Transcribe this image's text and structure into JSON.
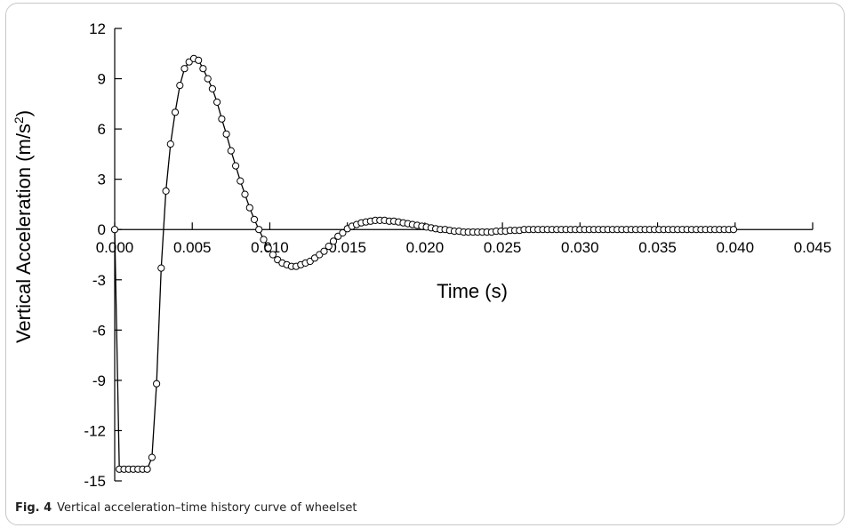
{
  "caption": {
    "label": "Fig. 4",
    "text": "Vertical acceleration–time history curve of wheelset"
  },
  "chart_data": {
    "type": "line",
    "title": "",
    "xlabel": "Time (s)",
    "ylabel": "Vertical Acceleration (m/s²)",
    "ylabel_main": "Vertical Acceleration (m/s",
    "ylabel_sup": "2",
    "ylabel_close": ")",
    "xlim": [
      0,
      0.045
    ],
    "ylim": [
      -15,
      12
    ],
    "xticks": [
      0,
      0.005,
      0.01,
      0.015,
      0.02,
      0.025,
      0.03,
      0.035,
      0.04,
      0.045
    ],
    "xtick_labels": [
      "0.000",
      "0.005",
      "0.010",
      "0.015",
      "0.020",
      "0.025",
      "0.030",
      "0.035",
      "0.040",
      "0.045"
    ],
    "yticks": [
      12,
      9,
      6,
      3,
      0,
      -3,
      -6,
      -9,
      -12,
      -15
    ],
    "ytick_labels": [
      "12",
      "9",
      "6",
      "3",
      "0",
      "-3",
      "-6",
      "-9",
      "-12",
      "-15"
    ],
    "grid": false,
    "legend": "none",
    "marker": "open-circle",
    "line_color": "#000000",
    "series": [
      {
        "x": [
          0.0,
          0.0003,
          0.0006,
          0.0009,
          0.0012,
          0.0015,
          0.0018,
          0.0021,
          0.0024,
          0.0027,
          0.003,
          0.0033,
          0.0036,
          0.0039,
          0.0042,
          0.0045,
          0.0048,
          0.0051,
          0.0054,
          0.0057,
          0.006,
          0.0063,
          0.0066,
          0.0069,
          0.0072,
          0.0075,
          0.0078,
          0.0081,
          0.0084,
          0.0087,
          0.009,
          0.0093,
          0.0096,
          0.0099,
          0.0102,
          0.0105,
          0.0108,
          0.0111,
          0.0114,
          0.0117,
          0.012,
          0.0123,
          0.0126,
          0.0129,
          0.0132,
          0.0135,
          0.0138,
          0.0141,
          0.0144,
          0.0147,
          0.015,
          0.0153,
          0.0156,
          0.0159,
          0.0162,
          0.0165,
          0.0168,
          0.0171,
          0.0174,
          0.0177,
          0.018,
          0.0183,
          0.0186,
          0.0189,
          0.0192,
          0.0195,
          0.0198,
          0.0201,
          0.0204,
          0.0207,
          0.021,
          0.0213,
          0.0216,
          0.0219,
          0.0222,
          0.0225,
          0.0228,
          0.0231,
          0.0234,
          0.0237,
          0.024,
          0.0243,
          0.0246,
          0.0249,
          0.0252,
          0.0255,
          0.0258,
          0.0261,
          0.0264,
          0.0267,
          0.027,
          0.0273,
          0.0276,
          0.0279,
          0.0282,
          0.0285,
          0.0288,
          0.0291,
          0.0294,
          0.0297,
          0.03,
          0.0303,
          0.0306,
          0.0309,
          0.0312,
          0.0315,
          0.0318,
          0.0321,
          0.0324,
          0.0327,
          0.033,
          0.0333,
          0.0336,
          0.0339,
          0.0342,
          0.0345,
          0.0348,
          0.0351,
          0.0354,
          0.0357,
          0.036,
          0.0363,
          0.0366,
          0.0369,
          0.0372,
          0.0375,
          0.0378,
          0.0381,
          0.0384,
          0.0387,
          0.039,
          0.0393,
          0.0396,
          0.0399
        ],
        "y": [
          0.0,
          -14.3,
          -14.3,
          -14.3,
          -14.3,
          -14.3,
          -14.3,
          -14.3,
          -13.6,
          -9.2,
          -2.3,
          2.3,
          5.1,
          7.0,
          8.6,
          9.6,
          10.0,
          10.2,
          10.1,
          9.6,
          9.0,
          8.4,
          7.6,
          6.6,
          5.7,
          4.7,
          3.8,
          2.9,
          2.1,
          1.3,
          0.6,
          0.0,
          -0.6,
          -1.1,
          -1.5,
          -1.8,
          -2.0,
          -2.1,
          -2.2,
          -2.2,
          -2.1,
          -2.0,
          -1.9,
          -1.7,
          -1.5,
          -1.3,
          -1.0,
          -0.7,
          -0.4,
          -0.2,
          0.05,
          0.2,
          0.3,
          0.4,
          0.45,
          0.5,
          0.55,
          0.55,
          0.55,
          0.5,
          0.5,
          0.45,
          0.4,
          0.35,
          0.3,
          0.25,
          0.2,
          0.15,
          0.1,
          0.05,
          0.0,
          0.0,
          -0.05,
          -0.1,
          -0.1,
          -0.15,
          -0.15,
          -0.15,
          -0.15,
          -0.15,
          -0.15,
          -0.15,
          -0.1,
          -0.1,
          -0.1,
          -0.05,
          -0.05,
          -0.05,
          0.0,
          0.0,
          0.0,
          0.0,
          0.0,
          0.0,
          0.0,
          0.0,
          0.0,
          0.0,
          0.0,
          0.0,
          0.0,
          0.0,
          0.0,
          0.0,
          0.0,
          0.0,
          0.0,
          0.0,
          0.0,
          0.0,
          0.0,
          0.0,
          0.0,
          0.0,
          0.0,
          0.0,
          0.0,
          0.0,
          0.0,
          0.0,
          0.0,
          0.0,
          0.0,
          0.0,
          0.0,
          0.0,
          0.0,
          0.0,
          0.0,
          0.0,
          0.0,
          0.0,
          0.0,
          0.0
        ]
      }
    ]
  }
}
